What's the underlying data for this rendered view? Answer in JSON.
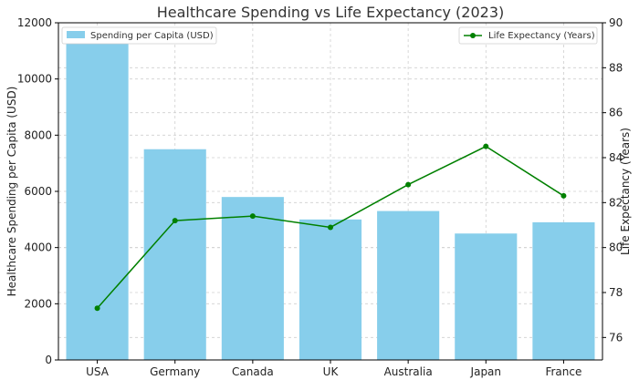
{
  "chart_data": {
    "type": "bar+line",
    "title": "Healthcare Spending vs Life Expectancy (2023)",
    "categories": [
      "USA",
      "Germany",
      "Canada",
      "UK",
      "Australia",
      "Japan",
      "France"
    ],
    "bar_series": {
      "name": "Spending per Capita (USD)",
      "values": [
        11300,
        7500,
        5800,
        5000,
        5300,
        4500,
        4900
      ],
      "color": "#87ceeb"
    },
    "line_series": {
      "name": "Life Expectancy (Years)",
      "values": [
        77.3,
        81.2,
        81.4,
        80.9,
        82.8,
        84.5,
        82.3
      ],
      "color": "#008000"
    },
    "ylabel_left": "Healthcare Spending per Capita (USD)",
    "ylabel_right": "Life Expectancy (Years)",
    "ylim_left": [
      0,
      12000
    ],
    "yticks_left": [
      0,
      2000,
      4000,
      6000,
      8000,
      10000,
      12000
    ],
    "ylim_right": [
      75,
      90
    ],
    "yticks_right": [
      76,
      78,
      80,
      82,
      84,
      86,
      88,
      90
    ],
    "grid": true,
    "legend_bar_position": "top-left",
    "legend_line_position": "top-right"
  }
}
